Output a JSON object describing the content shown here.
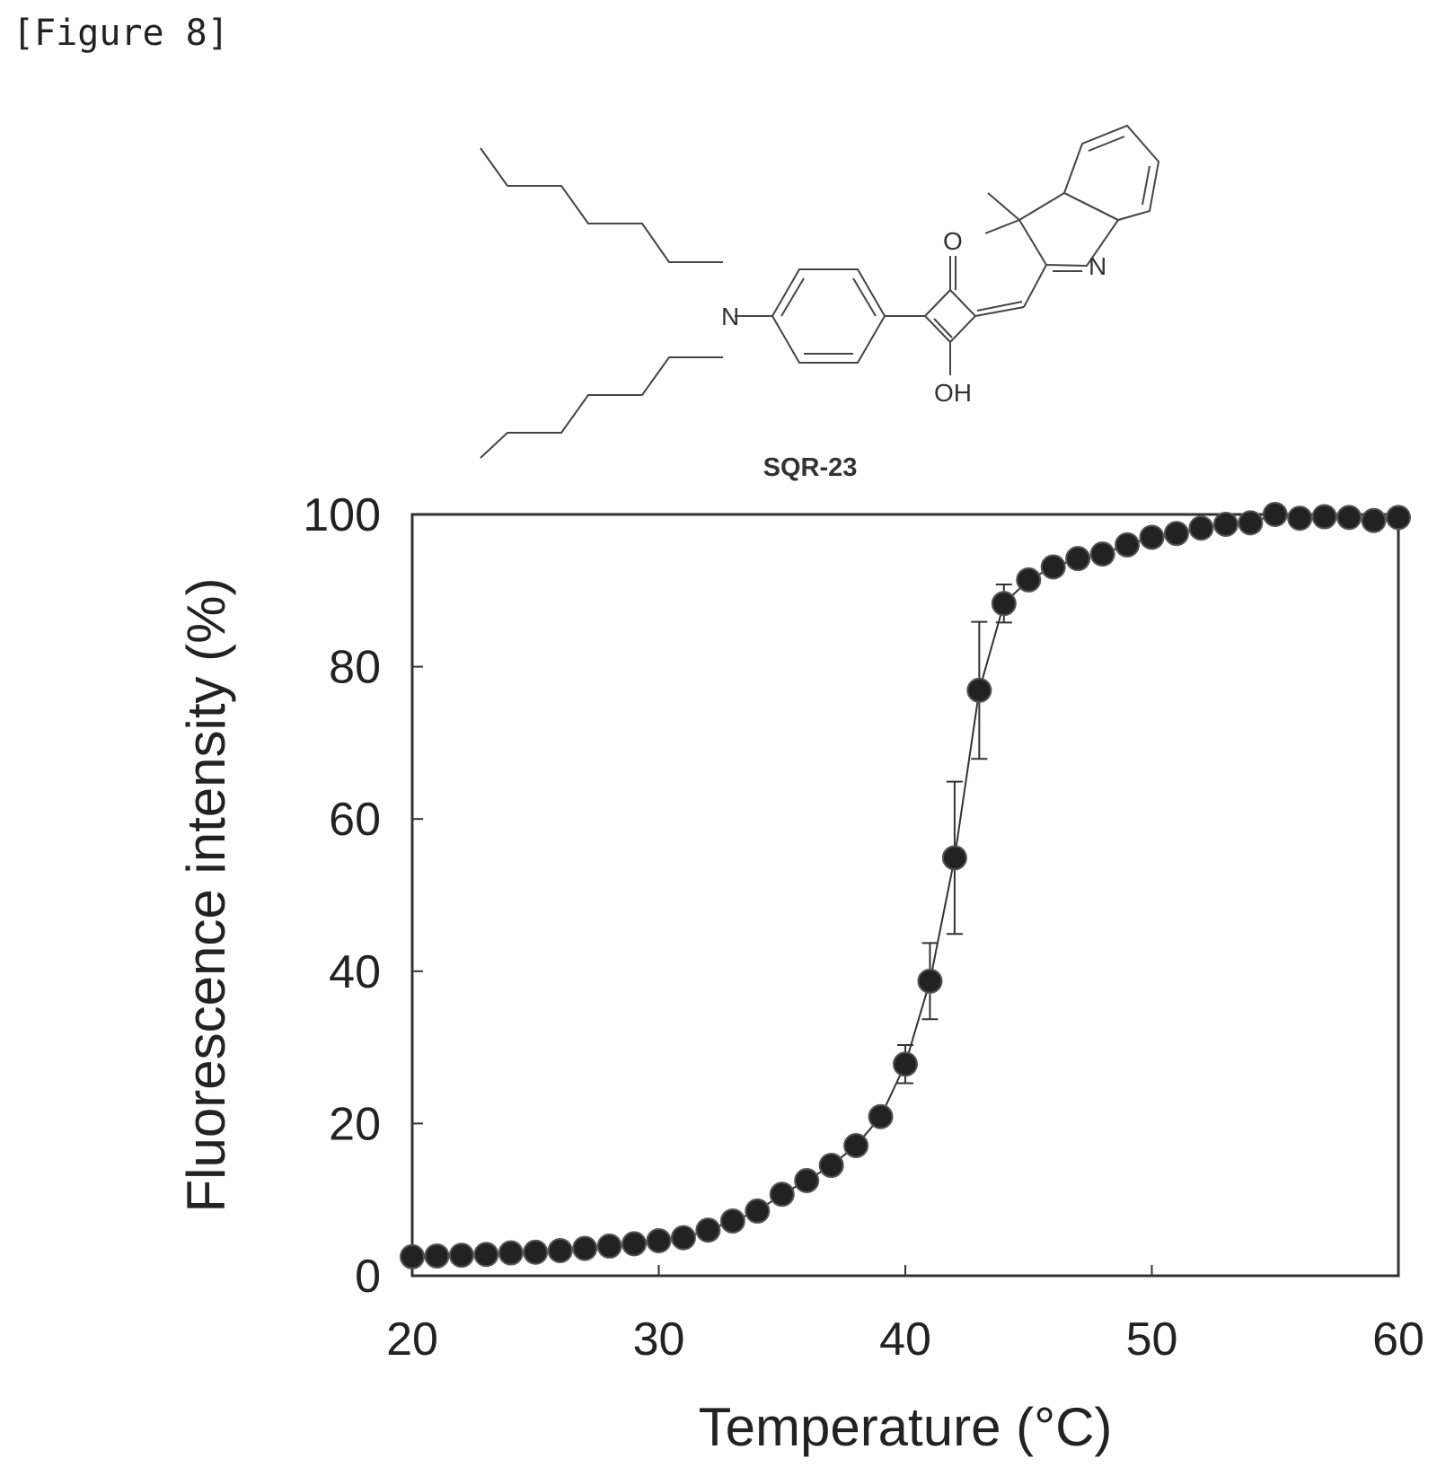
{
  "figure_label": "[Figure 8]",
  "compound": {
    "name": "SQR-23",
    "atoms": {
      "n_amine": "N",
      "n_indole": "N",
      "oxo": "O",
      "hydroxy": "OH"
    }
  },
  "chart_data": {
    "type": "line",
    "title": "",
    "xlabel": "Temperature (°C)",
    "ylabel": "Fluorescence intensity (%)",
    "xlim": [
      20,
      60
    ],
    "ylim": [
      0,
      100
    ],
    "xticks": [
      20,
      30,
      40,
      50,
      60
    ],
    "yticks": [
      0,
      20,
      40,
      60,
      80,
      100
    ],
    "grid": false,
    "legend": "none",
    "marker": "filled-circle",
    "series": [
      {
        "x": [
          20,
          21,
          22,
          23,
          24,
          25,
          26,
          27,
          28,
          29,
          30,
          31,
          32,
          33,
          34,
          35,
          36,
          37,
          38,
          39,
          40,
          41,
          42,
          43,
          44,
          45,
          46,
          47,
          48,
          49,
          50,
          51,
          52,
          53,
          54,
          55,
          56,
          57,
          58,
          59,
          60
        ],
        "y": [
          2.5,
          2.6,
          2.7,
          2.8,
          3.0,
          3.1,
          3.3,
          3.6,
          3.9,
          4.2,
          4.6,
          5.0,
          6.0,
          7.2,
          8.5,
          10.7,
          12.5,
          14.5,
          17.1,
          20.9,
          27.8,
          38.7,
          54.9,
          76.9,
          88.3,
          91.4,
          93.1,
          94.2,
          94.8,
          96.0,
          97.0,
          97.5,
          98.2,
          98.7,
          98.9,
          100.0,
          99.5,
          99.7,
          99.6,
          99.2,
          99.6
        ],
        "error": [
          0,
          0,
          0,
          0,
          0,
          0,
          0,
          0,
          0,
          0,
          0,
          0,
          0,
          0,
          0,
          0,
          0,
          0,
          0,
          0,
          2.5,
          5.0,
          10.0,
          9.0,
          2.5,
          0,
          0,
          0,
          0,
          0,
          0,
          0,
          0,
          0,
          0,
          0,
          0,
          0,
          0,
          0,
          0
        ]
      }
    ]
  }
}
